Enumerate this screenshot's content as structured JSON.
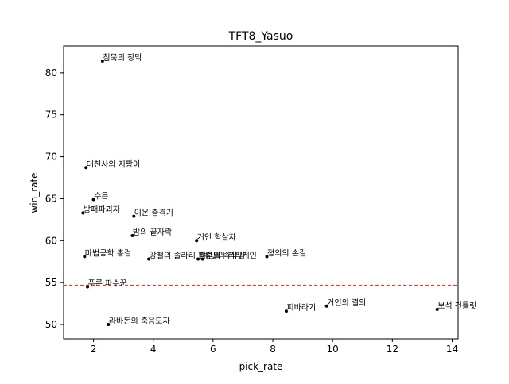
{
  "chart_data": {
    "type": "scatter",
    "title": "TFT8_Yasuo",
    "xlabel": "pick_rate",
    "ylabel": "win_rate",
    "xlim": [
      1.0,
      14.2
    ],
    "ylim": [
      48.3,
      83.2
    ],
    "xticks": [
      "2",
      "4",
      "6",
      "8",
      "10",
      "12",
      "14"
    ],
    "xtick_values": [
      2,
      4,
      6,
      8,
      10,
      12,
      14
    ],
    "yticks": [
      "50",
      "55",
      "60",
      "65",
      "70",
      "75",
      "80"
    ],
    "ytick_values": [
      50,
      55,
      60,
      65,
      70,
      75,
      80
    ],
    "grid": false,
    "reference_line": {
      "y": 54.7,
      "color": "#d62728",
      "style": "dashed"
    },
    "point_color": "#000000",
    "points": [
      {
        "label": "침묵의 장막",
        "x": 2.3,
        "y": 81.4
      },
      {
        "label": "대천사의 지팡이",
        "x": 1.75,
        "y": 68.7
      },
      {
        "label": "수은",
        "x": 2.0,
        "y": 64.9
      },
      {
        "label": "방패파괴자",
        "x": 1.65,
        "y": 63.3
      },
      {
        "label": "이온 충격기",
        "x": 3.35,
        "y": 62.9
      },
      {
        "label": "밤의 끝자락",
        "x": 3.3,
        "y": 60.6
      },
      {
        "label": "거인 학살자",
        "x": 5.45,
        "y": 60.0
      },
      {
        "label": "마법공학 총검",
        "x": 1.7,
        "y": 58.1
      },
      {
        "label": "강철의 솔라리 펜던트",
        "x": 3.85,
        "y": 57.8
      },
      {
        "label": "최후의 속삭임",
        "x": 5.5,
        "y": 57.8
      },
      {
        "label": "루난의 허리케인",
        "x": 5.65,
        "y": 57.8
      },
      {
        "label": "정의의 손길",
        "x": 7.8,
        "y": 58.1
      },
      {
        "label": "푸른 파수꾼",
        "x": 1.8,
        "y": 54.5
      },
      {
        "label": "피바라기",
        "x": 8.45,
        "y": 51.6
      },
      {
        "label": "거인의 결의",
        "x": 9.8,
        "y": 52.2
      },
      {
        "label": "보석 건틀릿",
        "x": 13.5,
        "y": 51.8
      },
      {
        "label": "라바돈의 죽음모자",
        "x": 2.5,
        "y": 50.0
      }
    ]
  }
}
